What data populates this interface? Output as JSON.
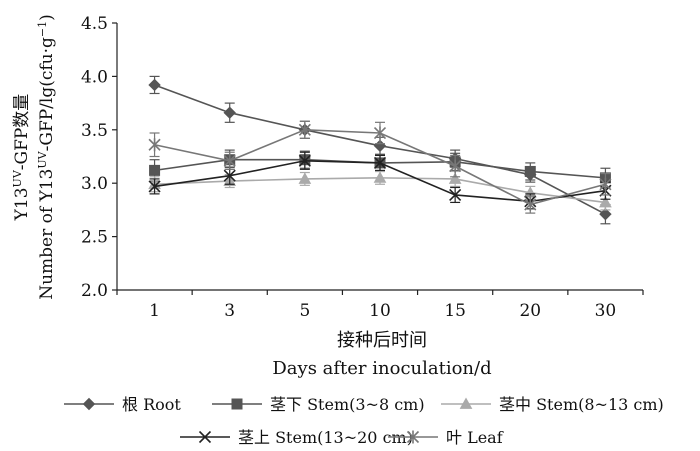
{
  "chart_data": {
    "type": "line",
    "categories": [
      "1",
      "3",
      "5",
      "10",
      "15",
      "20",
      "30"
    ],
    "ylim": [
      2.0,
      4.5
    ],
    "yticks": [
      "2.0",
      "2.5",
      "3.0",
      "3.5",
      "4.0",
      "4.5"
    ],
    "ylabel_line1_parts": [
      "Y13",
      "UV",
      "-GFP数量"
    ],
    "ylabel_line2_parts": [
      "Number of Y13",
      "UV",
      "-GFP/lg(cfu·g",
      "−1",
      ")"
    ],
    "xlabel_cn": "接种后时间",
    "xlabel_en": "Days after inoculation/d",
    "grid": false,
    "legend_position": "bottom",
    "series": [
      {
        "name": "根  Root",
        "marker": "diamond",
        "color": "#555555",
        "values": [
          3.92,
          3.66,
          3.5,
          3.35,
          3.23,
          3.08,
          2.71
        ],
        "errors": [
          0.08,
          0.09,
          0.08,
          0.08,
          0.08,
          0.07,
          0.09
        ]
      },
      {
        "name": "茎下  Stem(3~8 cm)",
        "marker": "square",
        "color": "#555555",
        "values": [
          3.12,
          3.22,
          3.22,
          3.19,
          3.2,
          3.11,
          3.05
        ],
        "errors": [
          0.1,
          0.09,
          0.08,
          0.08,
          0.08,
          0.08,
          0.09
        ]
      },
      {
        "name": "茎中  Stem(8~13 cm)",
        "marker": "triangle",
        "color": "#aaaaaa",
        "values": [
          2.99,
          3.02,
          3.04,
          3.05,
          3.04,
          2.91,
          2.82
        ],
        "errors": [
          0.07,
          0.06,
          0.06,
          0.06,
          0.07,
          0.06,
          0.07
        ]
      },
      {
        "name": "茎上  Stem(13~20 cm)",
        "marker": "x",
        "color": "#222222",
        "values": [
          2.97,
          3.07,
          3.21,
          3.19,
          2.89,
          2.83,
          2.93
        ],
        "errors": [
          0.07,
          0.08,
          0.08,
          0.07,
          0.07,
          0.07,
          0.08
        ]
      },
      {
        "name": "叶  Leaf",
        "marker": "asterisk",
        "color": "#777777",
        "values": [
          3.36,
          3.21,
          3.5,
          3.47,
          3.16,
          2.8,
          2.99
        ],
        "errors": [
          0.11,
          0.08,
          0.08,
          0.1,
          0.1,
          0.08,
          0.1
        ]
      }
    ]
  }
}
